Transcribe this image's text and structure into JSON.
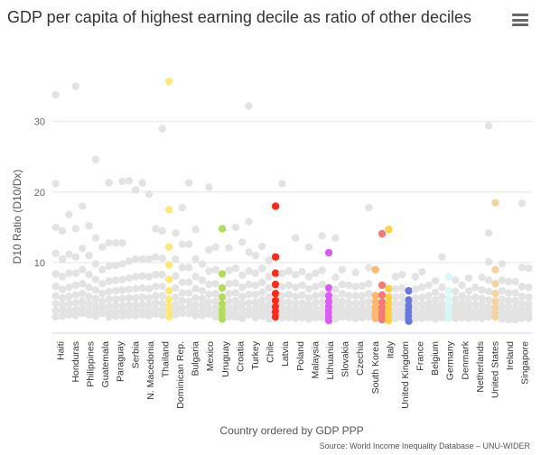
{
  "header": {
    "title": "GDP per capita of highest earning decile as ratio of other deciles",
    "menu_icon": "hamburger-menu-icon"
  },
  "source": "Source: World Income Inequality Database – UNU-WIDER",
  "chart_data": {
    "type": "scatter",
    "title": "GDP per capita of highest earning decile as ratio of other deciles",
    "xlabel": "Country ordered by GDP PPP",
    "ylabel": "D10 Ratio (D10/Dx)",
    "ylim": [
      0,
      37
    ],
    "yticks": [
      10,
      20,
      30
    ],
    "grid": true,
    "legend": "none",
    "base_color": "#e3e3e3",
    "labeled_categories": [
      "Haiti",
      "Honduras",
      "Philippines",
      "Guatemala",
      "Paraguay",
      "Serbia",
      "N. Macedonia",
      "Thailand",
      "Dominican Rep.",
      "Bulgaria",
      "Mexico",
      "Uruguay",
      "Croatia",
      "Turkey",
      "Chile",
      "Latvia",
      "Poland",
      "Malaysia",
      "Lithuania",
      "Slovakia",
      "Czechia",
      "South Korea",
      "Italy",
      "United Kingdom",
      "France",
      "Belgium",
      "Germany",
      "Denmark",
      "Netherlands",
      "United States",
      "Ireland",
      "Singapore"
    ],
    "columns": [
      {
        "values": [
          33.8,
          21.2,
          15,
          11.3,
          8.4,
          6.6,
          5.3,
          4.2,
          3.2,
          2.3
        ]
      },
      {
        "values": [
          14.5,
          10.5,
          8,
          6.2,
          5,
          4,
          3.2,
          2.4
        ]
      },
      {
        "values": [
          16.8,
          11.2,
          8.5,
          6.5,
          5.2,
          4.2,
          3.3,
          2.6
        ]
      },
      {
        "values": [
          35,
          14.8,
          10.8,
          8.5,
          6.8,
          5.4,
          4.3,
          3.3,
          2.5
        ]
      },
      {
        "values": [
          18,
          12,
          9,
          7,
          5.6,
          4.5,
          3.6,
          2.8
        ]
      },
      {
        "values": [
          15.2,
          11,
          8.3,
          6.5,
          5.2,
          4.2,
          3.3,
          2.6
        ]
      },
      {
        "values": [
          24.6,
          13.5,
          9.8,
          7.6,
          6.1,
          4.9,
          3.9,
          3.1,
          2.4
        ]
      },
      {
        "values": [
          12.2,
          9,
          7,
          5.6,
          4.5,
          3.6,
          2.8
        ]
      },
      {
        "values": [
          21.3,
          12.8,
          9.5,
          7.4,
          5.9,
          4.8,
          3.8,
          3,
          2.3
        ]
      },
      {
        "values": [
          12.8,
          9.6,
          7.5,
          6,
          4.8,
          3.9,
          3.1,
          2.4
        ]
      },
      {
        "values": [
          21.5,
          12.8,
          9.8,
          7.6,
          6.1,
          4.9,
          3.9,
          3.1,
          2.4
        ]
      },
      {
        "values": [
          21.6,
          10.2,
          7.8,
          6.2,
          5,
          4,
          3.2,
          2.5
        ]
      },
      {
        "values": [
          20.3,
          10.5,
          8,
          6.3,
          5,
          4,
          3.2,
          2.5
        ]
      },
      {
        "values": [
          21.3,
          10.5,
          8.1,
          6.4,
          5.1,
          4.1,
          3.3,
          2.6
        ]
      },
      {
        "values": [
          19.7,
          10.5,
          8,
          6.3,
          5,
          4,
          3.2,
          2.5
        ]
      },
      {
        "values": [
          14.8,
          10.8,
          8.3,
          6.6,
          5.3,
          4.3,
          3.4,
          2.7
        ]
      },
      {
        "values": [
          29,
          14.5,
          10.6,
          8.3,
          6.6,
          5.3,
          4.2,
          3.3,
          2.5
        ]
      },
      {
        "color": "#fce97a",
        "values": [
          35.7,
          17.5,
          12.2,
          9.7,
          7.6,
          6,
          4.8,
          3.8,
          3,
          2.3
        ]
      },
      {
        "values": [
          14.2,
          10.5,
          8.1,
          6.4,
          5.1,
          4.1,
          3.3,
          2.6
        ]
      },
      {
        "values": [
          17.8,
          12.6,
          9.3,
          7.2,
          5.7,
          4.6,
          3.6,
          2.8
        ]
      },
      {
        "values": [
          21.3,
          12.6,
          9.3,
          7.2,
          5.7,
          4.5,
          3.6,
          2.8
        ]
      },
      {
        "values": [
          14.7,
          10.5,
          8,
          6.3,
          5,
          4,
          3.2,
          2.5
        ]
      },
      {
        "values": [
          9.8,
          7.5,
          6,
          4.9,
          4,
          3.2,
          2.5
        ]
      },
      {
        "values": [
          20.7,
          11.8,
          8.8,
          6.9,
          5.5,
          4.4,
          3.5,
          2.7
        ]
      },
      {
        "values": [
          12.2,
          9,
          7,
          5.6,
          4.5,
          3.6,
          2.9,
          2.3
        ]
      },
      {
        "color": "#b4dc5c",
        "values": [
          14.8,
          8.4,
          6.4,
          5.1,
          4.1,
          3.3,
          2.6,
          2
        ]
      },
      {
        "values": [
          12.1,
          8.9,
          7,
          5.6,
          4.5,
          3.6,
          2.9,
          2.3
        ]
      },
      {
        "values": [
          15,
          9.2,
          7.1,
          5.7,
          4.6,
          3.7,
          2.9,
          2.3
        ]
      },
      {
        "values": [
          12.9,
          8.2,
          6.5,
          5.2,
          4.2,
          3.4,
          2.7,
          2.1
        ]
      },
      {
        "values": [
          32.2,
          15.8,
          11.5,
          8.8,
          6.9,
          5.5,
          4.3,
          3.4,
          2.6
        ]
      },
      {
        "values": [
          11,
          8.5,
          6.8,
          5.5,
          4.4,
          3.5,
          2.8,
          2.2
        ]
      },
      {
        "values": [
          12.3,
          9.2,
          7.2,
          5.8,
          4.7,
          3.8,
          3,
          2.4
        ]
      },
      {
        "values": [
          10.3,
          8,
          6.4,
          5.1,
          4.1,
          3.3,
          2.6,
          2
        ]
      },
      {
        "color": "#ff2a1a",
        "values": [
          18,
          10.8,
          8.5,
          6.9,
          5.6,
          4.6,
          3.7,
          3,
          2.3
        ]
      },
      {
        "values": [
          21.2,
          8.5,
          6.6,
          5.3,
          4.3,
          3.5,
          2.8,
          2.2
        ]
      },
      {
        "values": [
          8.8,
          6.8,
          5.5,
          4.4,
          3.5,
          2.8,
          2.2
        ]
      },
      {
        "values": [
          13.5,
          8.3,
          6.5,
          5.2,
          4.2,
          3.4,
          2.7,
          2.1
        ]
      },
      {
        "values": [
          8.7,
          6.8,
          5.4,
          4.3,
          3.5,
          2.8,
          2.2
        ]
      },
      {
        "values": [
          12.2,
          8,
          6.3,
          5,
          4,
          3.2,
          2.6,
          2
        ]
      },
      {
        "values": [
          8.5,
          6.6,
          5.3,
          4.3,
          3.4,
          2.7,
          2.2
        ]
      },
      {
        "values": [
          13.8,
          8.9,
          6.9,
          5.5,
          4.4,
          3.5,
          2.8,
          2.2
        ]
      },
      {
        "color": "#d95cf4",
        "values": [
          11.4,
          6.4,
          5.3,
          4.5,
          3.8,
          3.2,
          2.7,
          2.2,
          1.8
        ]
      },
      {
        "values": [
          13.5,
          7.9,
          6.2,
          5,
          4,
          3.2,
          2.6,
          2
        ]
      },
      {
        "values": [
          9,
          6.9,
          5.6,
          4.5,
          3.6,
          2.9,
          2.3
        ]
      },
      {
        "values": [
          6.8,
          5.3,
          4.3,
          3.5,
          2.8,
          2.2
        ]
      },
      {
        "values": [
          8.6,
          6.6,
          5.3,
          4.2,
          3.4,
          2.7,
          2.1
        ]
      },
      {
        "values": [
          6.7,
          5.3,
          4.3,
          3.5,
          2.8,
          2.2
        ]
      },
      {
        "values": [
          17.8,
          9.3,
          7,
          5.6,
          4.5,
          3.6,
          2.9,
          2.3
        ]
      },
      {
        "color": "#ffb770",
        "values": [
          9,
          5.3,
          4.4,
          3.7,
          3.1,
          2.6,
          2.1
        ]
      },
      {
        "color": "#f47a7a",
        "values": [
          14.1,
          6.8,
          5.4,
          4.4,
          3.6,
          2.9,
          2.3,
          1.9
        ]
      },
      {
        "color": "#ffd040",
        "values": [
          14.7,
          6.3,
          5.1,
          4.2,
          3.4,
          2.8,
          2.3,
          1.8
        ]
      },
      {
        "values": [
          8,
          6.3,
          5.1,
          4.1,
          3.3,
          2.7,
          2.1
        ]
      },
      {
        "values": [
          8.3,
          6.4,
          5.2,
          4.2,
          3.4,
          2.7,
          2.2
        ]
      },
      {
        "color": "#6678e0",
        "values": [
          6,
          4.7,
          3.9,
          3.3,
          2.8,
          2.4,
          2,
          1.7
        ]
      },
      {
        "values": [
          8,
          6.2,
          5,
          4.1,
          3.3,
          2.7,
          2.1
        ]
      },
      {
        "values": [
          8.7,
          6.5,
          5.1,
          4.1,
          3.3,
          2.7,
          2.1
        ]
      },
      {
        "values": [
          6.8,
          5.3,
          4.3,
          3.5,
          2.8,
          2.2
        ]
      },
      {
        "values": [
          7.4,
          5.8,
          4.7,
          3.8,
          3.1,
          2.5,
          2
        ]
      },
      {
        "values": [
          10.8,
          6.5,
          5.2,
          4.2,
          3.4,
          2.7,
          2.2
        ]
      },
      {
        "color": "#d8f8f8",
        "values": [
          8,
          6,
          4.9,
          4,
          3.2,
          2.6,
          2.1
        ]
      },
      {
        "values": [
          7.5,
          5.9,
          4.8,
          3.9,
          3.2,
          2.6,
          2.1
        ]
      },
      {
        "values": [
          6.8,
          5.3,
          4.3,
          3.5,
          2.8,
          2.2
        ]
      },
      {
        "values": [
          7.8,
          6,
          4.9,
          4,
          3.2,
          2.6,
          2.1
        ]
      },
      {
        "values": [
          6.5,
          5.1,
          4.1,
          3.3,
          2.7,
          2.2
        ]
      },
      {
        "values": [
          7.9,
          6.1,
          4.9,
          4,
          3.2,
          2.6,
          2.1
        ]
      },
      {
        "values": [
          29.4,
          14.2,
          10.1,
          7.5,
          5.9,
          4.7,
          3.7,
          2.9,
          2.3
        ]
      },
      {
        "color": "#f3d3a3",
        "values": [
          18.5,
          9,
          7,
          5.6,
          4.5,
          3.6,
          2.9,
          2.3
        ]
      },
      {
        "values": [
          9.8,
          7.5,
          6,
          4.8,
          3.9,
          3.1,
          2.5,
          2
        ]
      },
      {
        "values": [
          7.3,
          5.7,
          4.6,
          3.7,
          3,
          2.4,
          1.9
        ]
      },
      {
        "values": [
          7.3,
          5.7,
          4.6,
          3.7,
          3,
          2.4,
          1.9
        ]
      },
      {
        "values": [
          18.4,
          9.3,
          6.6,
          5.2,
          4.2,
          3.4,
          2.7,
          2.1
        ]
      },
      {
        "values": [
          9.2,
          6.5,
          5.1,
          4.1,
          3.3,
          2.6,
          2.1
        ]
      }
    ]
  }
}
